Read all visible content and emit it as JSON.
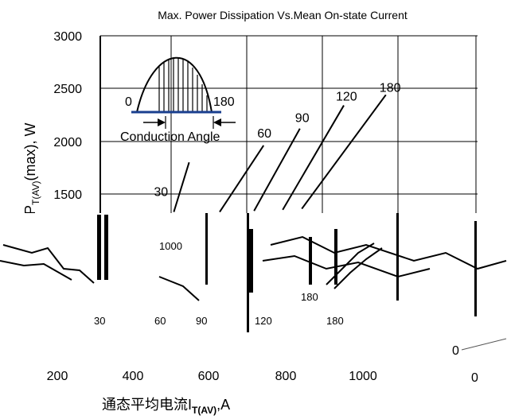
{
  "chart_data": {
    "type": "line",
    "title": "Max. Power Dissipation Vs.Mean On-state Current",
    "xlabel": "通态平均电流I",
    "xlabel_sub": "T(AV)",
    "xlabel_unit": ",A",
    "ylabel": "P",
    "ylabel_sub": "T(AV)",
    "ylabel_tail": "(max),  W",
    "ylim": [
      0,
      3000
    ],
    "xlim": [
      0,
      1100
    ],
    "y_ticks": [
      {
        "value": 3000,
        "label": "3000"
      },
      {
        "value": 2500,
        "label": "2500"
      },
      {
        "value": 2000,
        "label": "2000"
      },
      {
        "value": 1500,
        "label": "1500"
      }
    ],
    "x_ticks": [
      {
        "value": 200,
        "label": "200"
      },
      {
        "value": 400,
        "label": "400"
      },
      {
        "value": 600,
        "label": "600"
      },
      {
        "value": 800,
        "label": "800"
      },
      {
        "value": 1000,
        "label": "1000"
      }
    ],
    "series": [
      {
        "name": "30",
        "x": [
          505,
          545
        ],
        "y": [
          1330,
          1800
        ]
      },
      {
        "name": "60",
        "x": [
          625,
          740
        ],
        "y": [
          1330,
          1960
        ]
      },
      {
        "name": "90",
        "x": [
          715,
          835
        ],
        "y": [
          1340,
          2120
        ]
      },
      {
        "name": "120",
        "x": [
          790,
          950
        ],
        "y": [
          1350,
          2340
        ]
      },
      {
        "name": "180",
        "x": [
          840,
          1060
        ],
        "y": [
          1360,
          2440
        ]
      }
    ],
    "inset": {
      "left_label": "0",
      "right_label": "180",
      "caption": "Conduction Angle"
    },
    "grid": true,
    "stray_labels": [
      "0",
      "0"
    ]
  }
}
